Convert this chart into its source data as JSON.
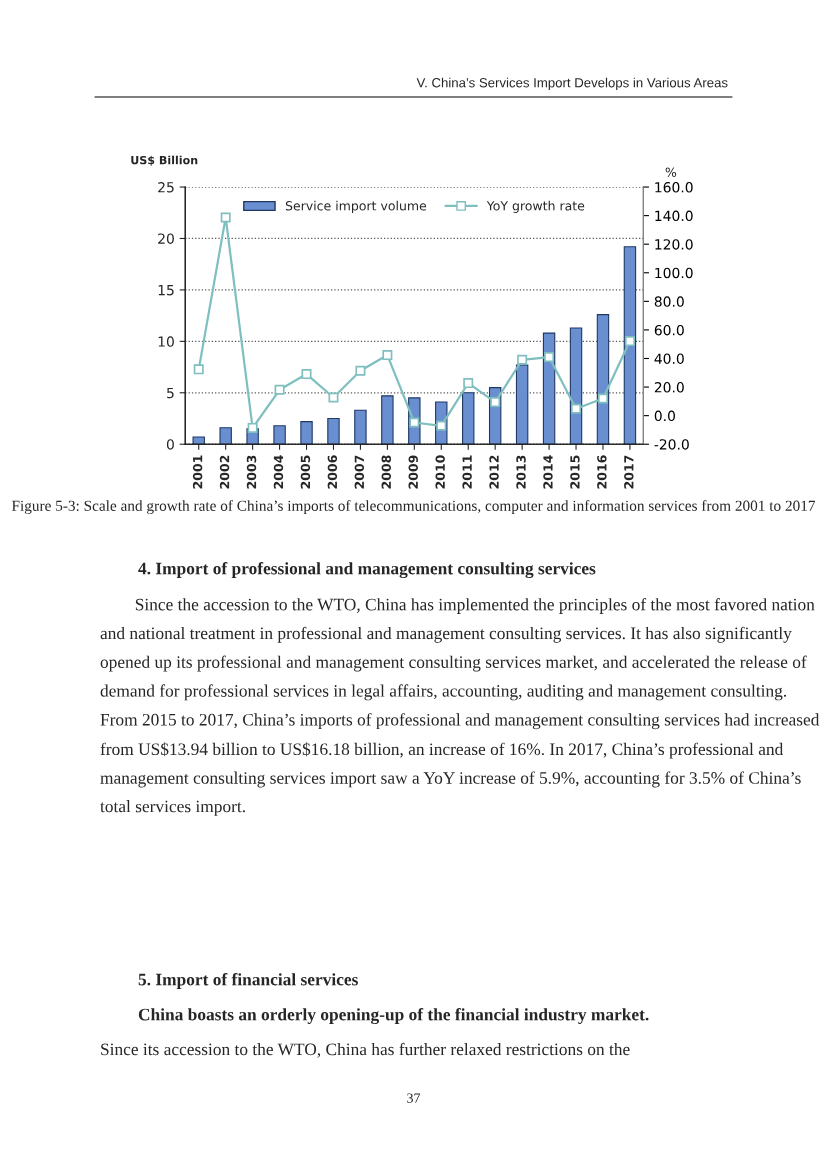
{
  "chart_data": {
    "type": "bar",
    "title": "Figure 5-3: Scale and growth rate of China’s imports of telecommunications, computer and information services from 2001 to 2017",
    "ylabel": "US$ Billion",
    "y2label": "%",
    "categories": [
      "2001",
      "2002",
      "2003",
      "2004",
      "2005",
      "2006",
      "2007",
      "2008",
      "2009",
      "2010",
      "2011",
      "2012",
      "2013",
      "2014",
      "2015",
      "2016",
      "2017"
    ],
    "series": [
      {
        "name": "Service import volume",
        "color": "#6a8fd0",
        "values": [
          0.7,
          1.6,
          1.5,
          1.8,
          2.2,
          2.5,
          3.3,
          4.7,
          4.5,
          4.1,
          5.0,
          5.5,
          7.7,
          10.8,
          11.3,
          12.6,
          19.2
        ]
      },
      {
        "name": "YoY growth rate",
        "type": "line",
        "axis": "y2",
        "color": "#7fbfbf",
        "values": [
          32.4,
          138.7,
          -8.6,
          18.1,
          29.1,
          12.7,
          31.4,
          42.4,
          -4.8,
          -7.1,
          22.8,
          9.5,
          39.1,
          41.0,
          4.8,
          12.0,
          52.2
        ]
      }
    ],
    "ylim": [
      0,
      25
    ],
    "yticks": [
      0,
      5,
      10,
      15,
      20,
      25
    ],
    "y2lim": [
      -20,
      160
    ],
    "y2ticks": [
      {
        "value": -20,
        "label": "-20.0"
      },
      {
        "value": 0,
        "label": "0.0"
      },
      {
        "value": 20,
        "label": "20.0"
      },
      {
        "value": 40,
        "label": "40.0"
      },
      {
        "value": 60,
        "label": "60.0"
      },
      {
        "value": 80,
        "label": "80.0"
      },
      {
        "value": 100,
        "label": "100.0"
      },
      {
        "value": 120,
        "label": "120.0"
      },
      {
        "value": 140,
        "label": "140.0"
      },
      {
        "value": 160,
        "label": "160.0"
      }
    ],
    "grid": "y",
    "legend": "top",
    "marker": "square",
    "annotations": [
      "V. China’s Services Import Develops in Various Areas",
      "4. Import of professional and management consulting services",
      "Since the accession to the WTO, China has implemented the principles of the most favored nation and national treatment in professional and management consulting services. It has also significantly opened up its professional and management consulting services market, and accelerated the release of demand for professional services in legal affairs, accounting, auditing and management consulting. From 2015 to 2017, China’s imports of professional and management consulting services had increased from US$13.94 billion to US$16.18 billion, an increase of 16%. In 2017, China’s professional and management consulting services import saw a YoY increase of 5.9%, accounting for 3.5% of China’s total services import.",
      "5. Import of financial services",
      "China boasts an orderly opening-up of the financial industry market.",
      "Since its accession to the WTO, China has further relaxed restrictions on the",
      "37"
    ]
  }
}
